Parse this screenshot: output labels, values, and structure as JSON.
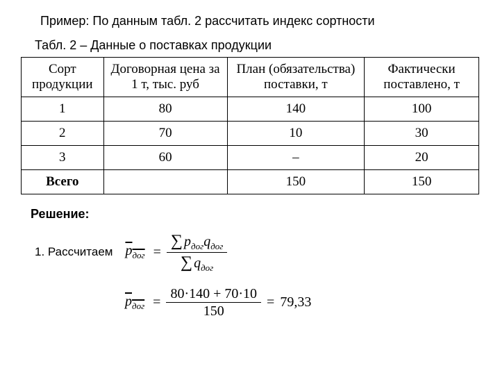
{
  "title": "Пример: По данным табл. 2 рассчитать индекс сортности",
  "caption": "Табл. 2 – Данные о поставках продукции",
  "table": {
    "columns": [
      "Сорт продукции",
      "Договорная цена за 1 т, тыс. руб",
      "План (обязательства) поставки, т",
      "Фактически поставлено, т"
    ],
    "col_widths": [
      "18%",
      "27%",
      "30%",
      "25%"
    ],
    "rows": [
      [
        "1",
        "80",
        "140",
        "100"
      ],
      [
        "2",
        "70",
        "10",
        "30"
      ],
      [
        "3",
        "60",
        "–",
        "20"
      ]
    ],
    "total_row": [
      "Всего",
      "",
      "150",
      "150"
    ],
    "border_color": "#000000",
    "header_fontsize": 19,
    "cell_fontsize": 19
  },
  "solution_label": "Решение:",
  "step1_label": "1. Рассчитаем",
  "formula1": {
    "lhs_var": "p",
    "lhs_sub": "дог",
    "num_terms": "p<sub>дог</sub>q<sub>дог</sub>",
    "den_terms": "q<sub>дог</sub>"
  },
  "formula2": {
    "lhs_var": "p",
    "lhs_sub": "дог",
    "num_expr": "80·140 + 70·10",
    "den_expr": "150",
    "result": "79,33"
  },
  "colors": {
    "background": "#ffffff",
    "text": "#000000",
    "border": "#000000"
  }
}
